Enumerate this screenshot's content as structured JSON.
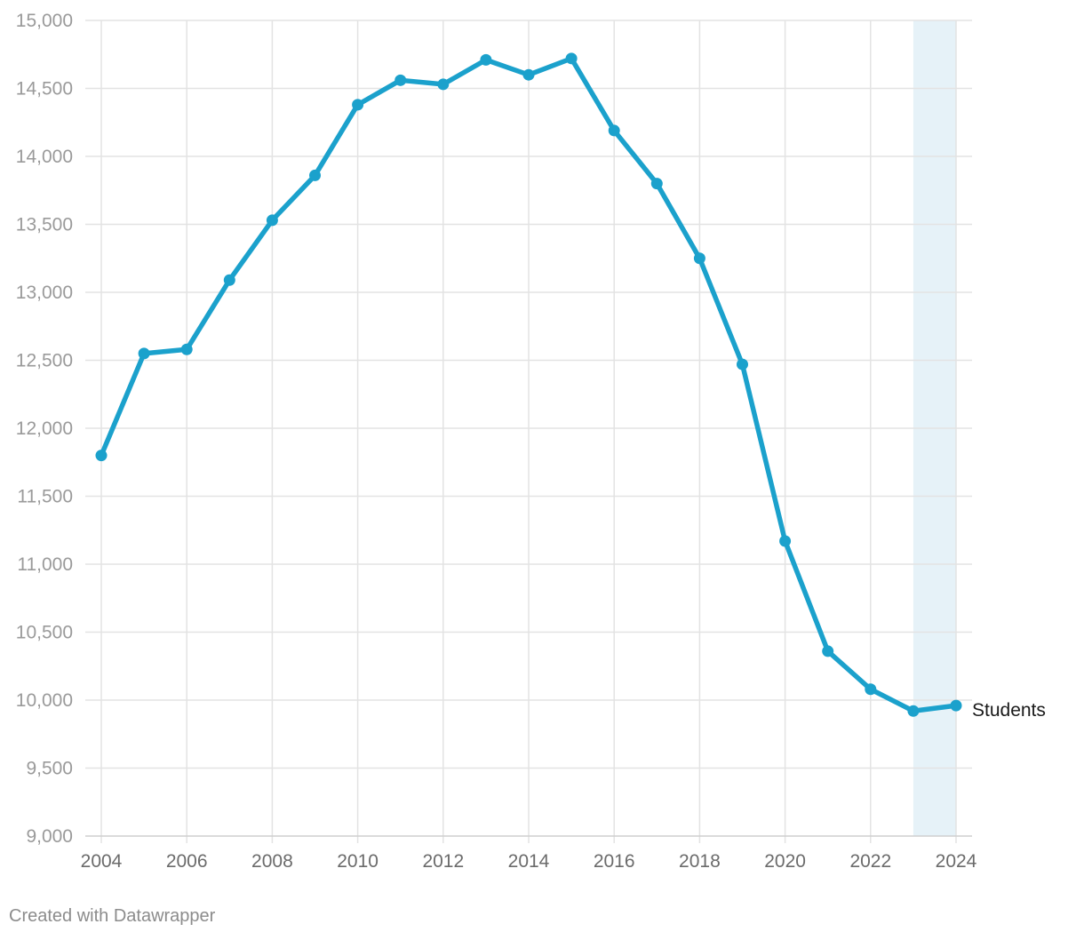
{
  "chart_data": {
    "type": "line",
    "title": "",
    "xlabel": "",
    "ylabel": "",
    "x": [
      2004,
      2005,
      2006,
      2007,
      2008,
      2009,
      2010,
      2011,
      2012,
      2013,
      2014,
      2015,
      2016,
      2017,
      2018,
      2019,
      2020,
      2021,
      2022,
      2023,
      2024
    ],
    "series": [
      {
        "name": "Students",
        "color": "#1ba1cc",
        "values": [
          11800,
          12550,
          12580,
          13090,
          13530,
          13860,
          14380,
          14560,
          14530,
          14710,
          14600,
          14720,
          14190,
          13800,
          13250,
          12470,
          11170,
          10360,
          10080,
          9920,
          9960
        ]
      }
    ],
    "xlim": [
      2004,
      2024
    ],
    "ylim": [
      9000,
      15000
    ],
    "yticks": [
      9000,
      9500,
      10000,
      10500,
      11000,
      11500,
      12000,
      12500,
      13000,
      13500,
      14000,
      14500,
      15000
    ],
    "ytick_labels": [
      "9,000",
      "9,500",
      "10,000",
      "10,500",
      "11,000",
      "11,500",
      "12,000",
      "12,500",
      "13,000",
      "13,500",
      "14,000",
      "14,500",
      "15,000"
    ],
    "xticks": [
      2004,
      2006,
      2008,
      2010,
      2012,
      2014,
      2016,
      2018,
      2020,
      2022,
      2024
    ],
    "xtick_labels": [
      "2004",
      "2006",
      "2008",
      "2010",
      "2012",
      "2014",
      "2016",
      "2018",
      "2020",
      "2022",
      "2024"
    ],
    "grid": true,
    "highlight_range": [
      2023,
      2024
    ],
    "highlight_color": "#e6f2f8"
  },
  "footer": {
    "credit": "Created with Datawrapper"
  }
}
